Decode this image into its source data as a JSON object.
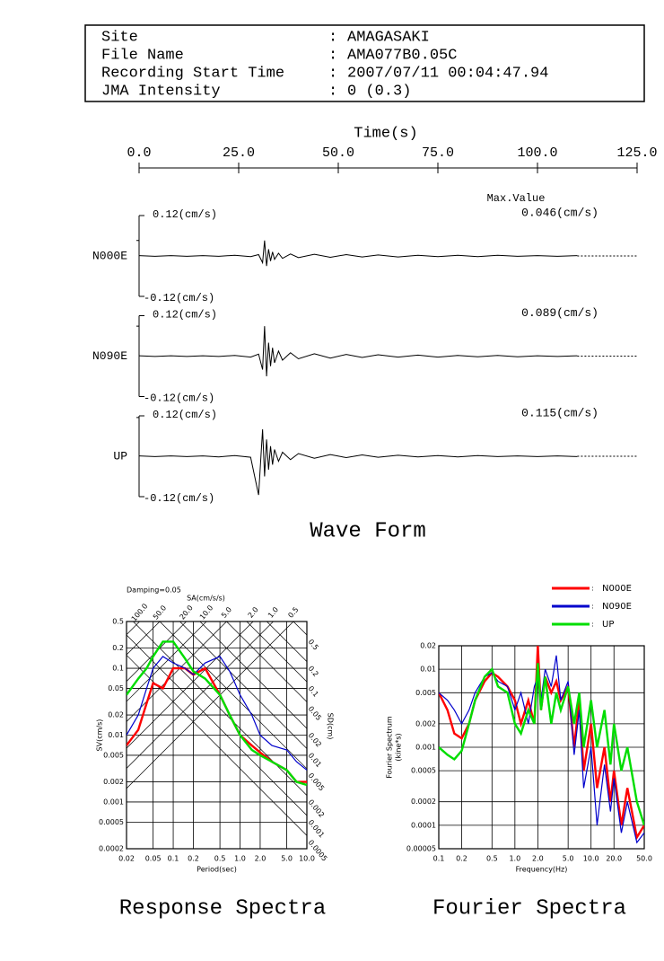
{
  "header": {
    "rows": [
      [
        "Site",
        "AMAGASAKI"
      ],
      [
        "File Name",
        "AMA077B0.05C"
      ],
      [
        "Recording Start Time",
        "2007/07/11 00:04:47.94"
      ],
      [
        "JMA Intensity",
        "0 (0.3)"
      ]
    ]
  },
  "chart_data": [
    {
      "type": "waveform",
      "title": "Wave Form",
      "xlabel": "Time(s)",
      "max_title": "Max.Value",
      "xlim": [
        0,
        125
      ],
      "xticks": [
        {
          "value": 0,
          "label": "0.0"
        },
        {
          "value": 25,
          "label": "25.0"
        },
        {
          "value": 50,
          "label": "50.0"
        },
        {
          "value": 75,
          "label": "75.0"
        },
        {
          "value": 100,
          "label": "100.0"
        },
        {
          "value": 125,
          "label": "125.0"
        }
      ],
      "ylim": [
        -0.12,
        0.12
      ],
      "yticks": [
        {
          "value": 0.12,
          "label": "0.12(cm/s)"
        },
        {
          "value": -0.12,
          "label": "-0.12(cm/s)"
        }
      ],
      "x": [
        0,
        4,
        8,
        12,
        16,
        20,
        24,
        28,
        30,
        31,
        31.5,
        32,
        32.5,
        33,
        33.5,
        34,
        35,
        36,
        38,
        40,
        44,
        48,
        52,
        56,
        60,
        65,
        70,
        75,
        80,
        85,
        90,
        95,
        100,
        105,
        110
      ],
      "series": [
        {
          "name": "N000E",
          "color": "#000000",
          "peak": 0.046,
          "peak_label": "0.046(cm/s)",
          "values": [
            0.001,
            -0.001,
            0.001,
            -0.001,
            0.001,
            -0.001,
            0.002,
            -0.002,
            0.004,
            -0.02,
            0.046,
            -0.03,
            0.02,
            -0.015,
            0.012,
            -0.01,
            0.008,
            -0.007,
            0.006,
            -0.005,
            0.005,
            -0.004,
            0.004,
            -0.003,
            0.003,
            -0.003,
            0.002,
            -0.002,
            0.002,
            -0.002,
            0.002,
            -0.001,
            0.001,
            -0.001,
            0.001
          ]
        },
        {
          "name": "N090E",
          "color": "#000000",
          "peak": 0.089,
          "peak_label": "0.089(cm/s)",
          "values": [
            0.001,
            -0.001,
            0.001,
            -0.001,
            0.001,
            -0.001,
            0.002,
            -0.003,
            0.006,
            -0.04,
            0.089,
            -0.06,
            0.04,
            -0.03,
            0.025,
            -0.02,
            0.015,
            -0.012,
            0.01,
            -0.008,
            0.007,
            -0.006,
            0.005,
            -0.004,
            0.004,
            -0.003,
            0.003,
            -0.003,
            0.002,
            -0.002,
            0.002,
            -0.002,
            0.001,
            -0.001,
            0.001
          ]
        },
        {
          "name": "UP",
          "color": "#000000",
          "peak": 0.115,
          "peak_label": "0.115(cm/s)",
          "values": [
            0.001,
            -0.001,
            0.001,
            -0.001,
            0.001,
            -0.002,
            0.002,
            -0.003,
            -0.115,
            0.08,
            -0.06,
            0.05,
            -0.04,
            0.03,
            -0.025,
            0.02,
            -0.015,
            0.012,
            -0.01,
            0.008,
            -0.006,
            0.005,
            -0.004,
            0.004,
            -0.003,
            0.003,
            -0.002,
            0.002,
            -0.002,
            0.002,
            -0.001,
            0.001,
            -0.001,
            0.001,
            -0.001
          ]
        }
      ]
    },
    {
      "type": "line",
      "title": "Response Spectra",
      "note": "Damping=0.05",
      "xlabel": "Period(sec)",
      "ylabel": "SV(cm/s)",
      "sa_label": "SA(cm/s/s)",
      "sd_label": "SD(cm)",
      "log_x": true,
      "log_y": true,
      "grid": true,
      "xlim": [
        0.02,
        10
      ],
      "xticks": [
        0.02,
        0.05,
        0.1,
        0.2,
        0.5,
        {
          "value": 1,
          "label": "1.0"
        },
        {
          "value": 2,
          "label": "2.0"
        },
        {
          "value": 5,
          "label": "5.0"
        },
        {
          "value": 10,
          "label": "10.0"
        }
      ],
      "ylim": [
        0.0002,
        0.5
      ],
      "yticks": [
        0.0002,
        0.0005,
        0.001,
        0.002,
        0.005,
        0.01,
        0.02,
        0.05,
        0.1,
        0.2,
        0.5
      ],
      "sa_ticks": [
        {
          "value": 100,
          "label": "100.0"
        },
        {
          "value": 50,
          "label": "50.0"
        },
        {
          "value": 20,
          "label": "20.0"
        },
        {
          "value": 10,
          "label": "10.0"
        },
        {
          "value": 5,
          "label": "5.0"
        },
        {
          "value": 2,
          "label": "2.0"
        },
        {
          "value": 1,
          "label": "1.0"
        },
        0.5
      ],
      "sd_ticks": [
        0.5,
        0.2,
        0.1,
        0.05,
        0.02,
        0.01,
        0.005,
        0.002,
        0.001,
        0.0005
      ],
      "x": [
        0.02,
        0.03,
        0.04,
        0.05,
        0.07,
        0.1,
        0.15,
        0.2,
        0.3,
        0.5,
        0.7,
        1,
        1.5,
        2,
        3,
        5,
        7,
        10
      ],
      "series": [
        {
          "name": "N000E",
          "color": "#ff0000",
          "values": [
            0.007,
            0.012,
            0.03,
            0.06,
            0.05,
            0.1,
            0.1,
            0.08,
            0.1,
            0.04,
            0.02,
            0.01,
            0.007,
            0.0055,
            0.004,
            0.003,
            0.002,
            0.002
          ]
        },
        {
          "name": "N090E",
          "color": "#0000cc",
          "values": [
            0.01,
            0.02,
            0.05,
            0.1,
            0.15,
            0.12,
            0.1,
            0.08,
            0.12,
            0.15,
            0.09,
            0.04,
            0.02,
            0.01,
            0.007,
            0.006,
            0.004,
            0.003
          ]
        },
        {
          "name": "UP",
          "color": "#00dd00",
          "values": [
            0.04,
            0.07,
            0.1,
            0.15,
            0.25,
            0.25,
            0.14,
            0.09,
            0.07,
            0.04,
            0.02,
            0.01,
            0.006,
            0.005,
            0.004,
            0.003,
            0.002,
            0.0018
          ]
        }
      ]
    },
    {
      "type": "line",
      "title": "Fourier Spectra",
      "xlabel": "Frequency(Hz)",
      "ylabel": "Fourier Spectrum",
      "yunit": "(kine*s)",
      "log_x": true,
      "log_y": true,
      "grid": true,
      "legend": "top-right",
      "xlim": [
        0.1,
        50
      ],
      "xticks": [
        0.1,
        0.2,
        0.5,
        {
          "value": 1,
          "label": "1.0"
        },
        {
          "value": 2,
          "label": "2.0"
        },
        {
          "value": 5,
          "label": "5.0"
        },
        {
          "value": 10,
          "label": "10.0"
        },
        {
          "value": 20,
          "label": "20.0"
        },
        {
          "value": 50,
          "label": "50.0"
        }
      ],
      "ylim": [
        5e-05,
        0.02
      ],
      "yticks": [
        5e-05,
        0.0001,
        0.0002,
        0.0005,
        0.001,
        0.002,
        0.005,
        0.01,
        0.02
      ],
      "x": [
        0.1,
        0.13,
        0.16,
        0.2,
        0.25,
        0.3,
        0.4,
        0.5,
        0.6,
        0.8,
        1,
        1.2,
        1.5,
        1.8,
        2,
        2.2,
        2.5,
        3,
        3.5,
        4,
        5,
        6,
        7,
        8,
        10,
        12,
        15,
        18,
        20,
        25,
        30,
        40,
        50
      ],
      "series": [
        {
          "name": "N000E",
          "color": "#ff0000",
          "values": [
            0.005,
            0.003,
            0.0015,
            0.0013,
            0.002,
            0.004,
            0.007,
            0.009,
            0.008,
            0.006,
            0.004,
            0.002,
            0.004,
            0.002,
            0.02,
            0.003,
            0.008,
            0.005,
            0.007,
            0.004,
            0.006,
            0.001,
            0.004,
            0.0005,
            0.002,
            0.0003,
            0.001,
            0.0002,
            0.0005,
            0.0001,
            0.0003,
            7e-05,
            0.0001
          ]
        },
        {
          "name": "N090E",
          "color": "#0000cc",
          "values": [
            0.005,
            0.004,
            0.003,
            0.002,
            0.003,
            0.005,
            0.008,
            0.009,
            0.007,
            0.006,
            0.003,
            0.005,
            0.002,
            0.006,
            0.008,
            0.004,
            0.01,
            0.006,
            0.015,
            0.004,
            0.007,
            0.0008,
            0.003,
            0.0003,
            0.001,
            0.0001,
            0.0006,
            0.00015,
            0.0004,
            8e-05,
            0.0002,
            6e-05,
            8e-05
          ]
        },
        {
          "name": "UP",
          "color": "#00dd00",
          "values": [
            0.001,
            0.0008,
            0.0007,
            0.0009,
            0.002,
            0.004,
            0.008,
            0.01,
            0.006,
            0.005,
            0.002,
            0.0015,
            0.003,
            0.002,
            0.012,
            0.003,
            0.008,
            0.002,
            0.005,
            0.003,
            0.006,
            0.002,
            0.005,
            0.001,
            0.004,
            0.001,
            0.003,
            0.0006,
            0.002,
            0.0005,
            0.001,
            0.0002,
            0.0001
          ]
        }
      ]
    }
  ]
}
